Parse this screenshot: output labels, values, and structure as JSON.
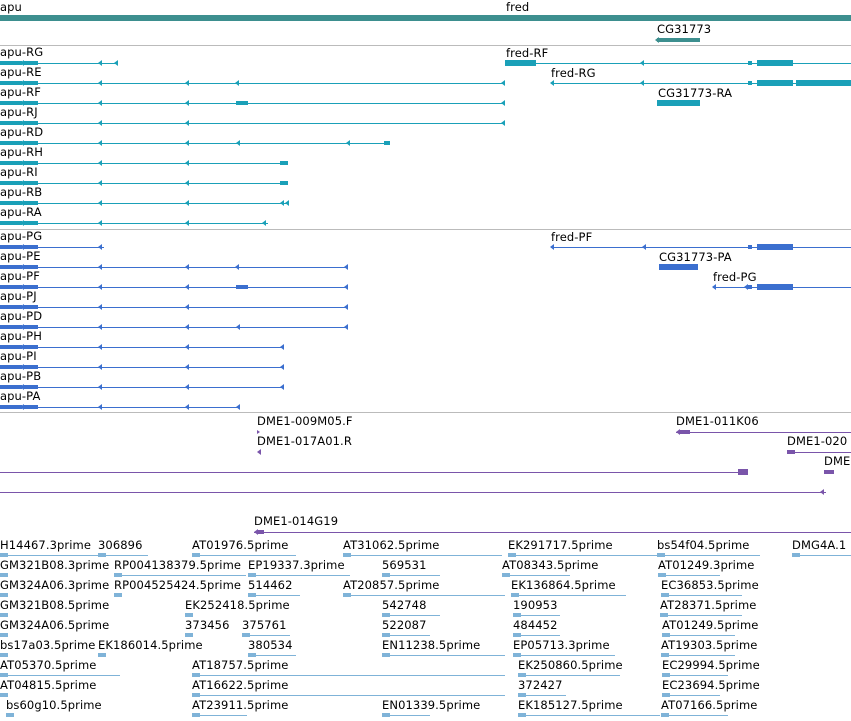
{
  "colors": {
    "gene": "#3d8f8f",
    "mrna": "#1aa0b8",
    "protein": "#3b6fcf",
    "clone": "#7a55aa",
    "est": "#7fb3d8"
  },
  "genes": [
    {
      "label": "apu"
    },
    {
      "label": "fred"
    },
    {
      "label": "CG31773"
    }
  ],
  "mrna": [
    {
      "label": "apu-RG"
    },
    {
      "label": "apu-RE"
    },
    {
      "label": "apu-RF"
    },
    {
      "label": "apu-RJ"
    },
    {
      "label": "apu-RD"
    },
    {
      "label": "apu-RH"
    },
    {
      "label": "apu-RI"
    },
    {
      "label": "apu-RB"
    },
    {
      "label": "apu-RA"
    },
    {
      "label": "fred-RF"
    },
    {
      "label": "fred-RG"
    },
    {
      "label": "CG31773-RA"
    }
  ],
  "proteins": [
    {
      "label": "apu-PG"
    },
    {
      "label": "apu-PE"
    },
    {
      "label": "apu-PF"
    },
    {
      "label": "apu-PJ"
    },
    {
      "label": "apu-PD"
    },
    {
      "label": "apu-PH"
    },
    {
      "label": "apu-PI"
    },
    {
      "label": "apu-PB"
    },
    {
      "label": "apu-PA"
    },
    {
      "label": "fred-PF"
    },
    {
      "label": "CG31773-PA"
    },
    {
      "label": "fred-PG"
    }
  ],
  "clones": [
    {
      "label": "DME1-009M05.F"
    },
    {
      "label": "DME1-017A01.R"
    },
    {
      "label": "DME1-011K06"
    },
    {
      "label": "DME1-020"
    },
    {
      "label": "DME"
    },
    {
      "label": "DME1-014G19"
    }
  ],
  "ests": [
    {
      "label": "H14467.3prime"
    },
    {
      "label": "306896"
    },
    {
      "label": "AT01976.5prime"
    },
    {
      "label": "AT31062.5prime"
    },
    {
      "label": "EK291717.5prime"
    },
    {
      "label": "bs54f04.5prime"
    },
    {
      "label": "DMG4A.1"
    },
    {
      "label": "GM321B08.3prime"
    },
    {
      "label": "RP004138379.5prime"
    },
    {
      "label": "EP19337.3prime"
    },
    {
      "label": "569531"
    },
    {
      "label": "AT08343.5prime"
    },
    {
      "label": "AT01249.3prime"
    },
    {
      "label": "GM324A06.3prime"
    },
    {
      "label": "RP004525424.5prime"
    },
    {
      "label": "514462"
    },
    {
      "label": "AT20857.5prime"
    },
    {
      "label": "EK136864.5prime"
    },
    {
      "label": "EC36853.5prime"
    },
    {
      "label": "GM321B08.5prime"
    },
    {
      "label": "EK252418.5prime"
    },
    {
      "label": "542748"
    },
    {
      "label": "190953"
    },
    {
      "label": "AT28371.5prime"
    },
    {
      "label": "GM324A06.5prime"
    },
    {
      "label": "373456"
    },
    {
      "label": "375761"
    },
    {
      "label": "522087"
    },
    {
      "label": "484452"
    },
    {
      "label": "AT01249.5prime"
    },
    {
      "label": "bs17a03.5prime"
    },
    {
      "label": "EK186014.5prime"
    },
    {
      "label": "380534"
    },
    {
      "label": "EN11238.5prime"
    },
    {
      "label": "EP05713.3prime"
    },
    {
      "label": "AT19303.5prime"
    },
    {
      "label": "AT05370.5prime"
    },
    {
      "label": "AT18757.5prime"
    },
    {
      "label": "EK250860.5prime"
    },
    {
      "label": "EC29994.5prime"
    },
    {
      "label": "AT04815.5prime"
    },
    {
      "label": "AT16622.5prime"
    },
    {
      "label": "372427"
    },
    {
      "label": "EC23694.5prime"
    },
    {
      "label": "bs60g10.5prime"
    },
    {
      "label": "AT23911.5prime"
    },
    {
      "label": "EN01339.5prime"
    },
    {
      "label": "EK185127.5prime"
    },
    {
      "label": "AT07166.5prime"
    }
  ]
}
